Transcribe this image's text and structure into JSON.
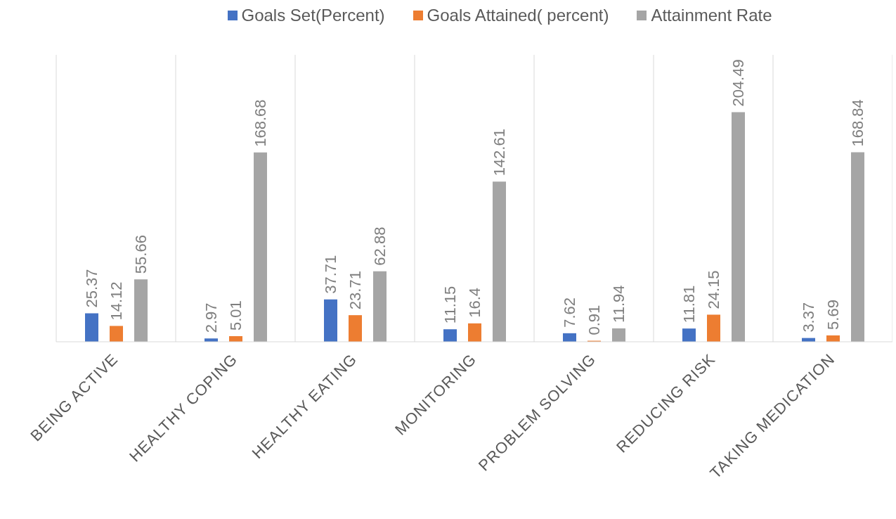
{
  "chart_data": {
    "type": "bar",
    "categories": [
      "BEING ACTIVE",
      "HEALTHY COPING",
      "HEALTHY EATING",
      "MONITORING",
      "PROBLEM SOLVING",
      "REDUCING RISK",
      "TAKING MEDICATION"
    ],
    "series": [
      {
        "name": "Goals Set(Percent)",
        "color": "#4472c4",
        "values": [
          25.37,
          2.97,
          37.71,
          11.15,
          7.62,
          11.81,
          3.37
        ]
      },
      {
        "name": "Goals Attained( percent)",
        "color": "#ed7d31",
        "values": [
          14.12,
          5.01,
          23.71,
          16.4,
          0.91,
          24.15,
          5.69
        ]
      },
      {
        "name": "Attainment Rate",
        "color": "#a5a5a5",
        "values": [
          55.66,
          168.68,
          62.88,
          142.61,
          11.94,
          204.49,
          168.84
        ]
      }
    ],
    "data_labels": true,
    "grid": "x",
    "legend": "top"
  }
}
